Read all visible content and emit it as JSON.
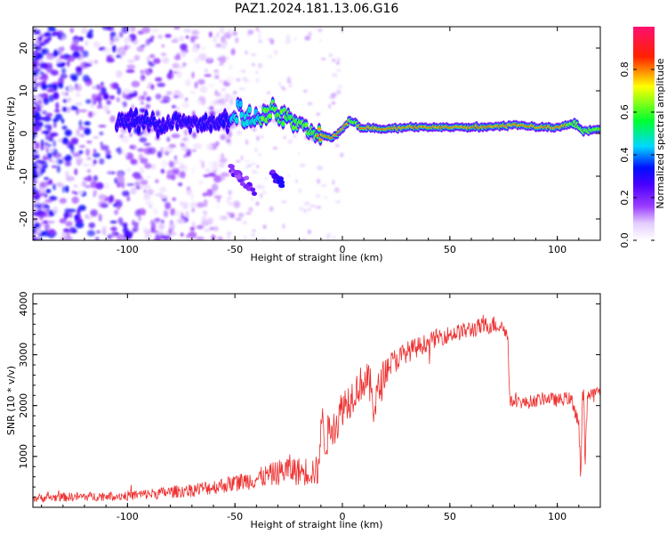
{
  "figure": {
    "title": "PAZ1.2024.181.13.06.G16"
  },
  "chart_data": [
    {
      "type": "heatmap",
      "xlabel": "Height of straight line (km)",
      "ylabel": "Frequency (Hz)",
      "xlim": [
        -144,
        120
      ],
      "ylim": [
        -25,
        25
      ],
      "xticks": [
        -100,
        -50,
        0,
        50,
        100
      ],
      "xtick_labels": [
        "-100",
        "-50",
        "0",
        "50",
        "100"
      ],
      "yticks": [
        -20,
        -10,
        0,
        10,
        20
      ],
      "ytick_labels": [
        "-20",
        "-10",
        "0",
        "10",
        "20"
      ],
      "colorbar": {
        "label": "Normalized spectral amplitude",
        "range": [
          0,
          1
        ],
        "ticks": [
          0.0,
          0.2,
          0.4,
          0.6,
          0.8
        ],
        "tick_labels": [
          "0.0",
          "0.2",
          "0.4",
          "0.6",
          "0.8"
        ],
        "stops": [
          {
            "v": 0.0,
            "color": "#ffffff"
          },
          {
            "v": 0.08,
            "color": "#e4ccff"
          },
          {
            "v": 0.16,
            "color": "#9a3cff"
          },
          {
            "v": 0.26,
            "color": "#4a00ff"
          },
          {
            "v": 0.34,
            "color": "#0010ff"
          },
          {
            "v": 0.44,
            "color": "#00d8ff"
          },
          {
            "v": 0.56,
            "color": "#00ff30"
          },
          {
            "v": 0.72,
            "color": "#ffff00"
          },
          {
            "v": 0.86,
            "color": "#ff2000"
          },
          {
            "v": 1.0,
            "color": "#ff1070"
          }
        ]
      },
      "ridge": {
        "x": [
          -100,
          -90,
          -80,
          -70,
          -60,
          -52,
          -48,
          -42,
          -38,
          -33,
          -28,
          -22,
          -18,
          -12,
          -8,
          -5,
          -2,
          0,
          3,
          6,
          9,
          12,
          20,
          30,
          40,
          50,
          60,
          70,
          80,
          90,
          100,
          108,
          112,
          116,
          120
        ],
        "freq": [
          3,
          2.5,
          3,
          2,
          2.5,
          3,
          6,
          3,
          4,
          5,
          4,
          3,
          1.5,
          0.5,
          -0.5,
          -1,
          0,
          1,
          3,
          2.5,
          1,
          1.5,
          1,
          1.5,
          1.5,
          1.5,
          1.5,
          1.5,
          2,
          1.5,
          1.5,
          2.5,
          0.5,
          0.8,
          1
        ],
        "amplitude": [
          0.3,
          0.35,
          0.32,
          0.3,
          0.34,
          0.4,
          0.5,
          0.45,
          0.55,
          0.6,
          0.55,
          0.6,
          0.7,
          0.75,
          0.75,
          0.8,
          0.8,
          0.75,
          0.75,
          0.7,
          0.8,
          0.85,
          0.85,
          0.75,
          0.78,
          0.75,
          0.78,
          0.8,
          0.85,
          0.82,
          0.82,
          0.7,
          0.55,
          0.7,
          0.7
        ]
      },
      "branches": [
        {
          "x": [
            -33,
            -28
          ],
          "freq": [
            -9,
            -12
          ],
          "amplitude": 0.3
        },
        {
          "x": [
            -52,
            -40
          ],
          "freq": [
            -8,
            -14
          ],
          "amplitude": 0.22
        }
      ]
    },
    {
      "type": "line",
      "xlabel": "Height of straight line (km)",
      "ylabel": "SNR (10 * v/v)",
      "xlim": [
        -144,
        120
      ],
      "ylim": [
        0,
        4200
      ],
      "xticks": [
        -100,
        -50,
        0,
        50,
        100
      ],
      "xtick_labels": [
        "-100",
        "-50",
        "0",
        "50",
        "100"
      ],
      "yticks": [
        1000,
        2000,
        3000,
        4000
      ],
      "ytick_labels": [
        "1000",
        "2000",
        "3000",
        "4000"
      ],
      "series": [
        {
          "color": "#ee3030",
          "x": [
            -144,
            -130,
            -120,
            -110,
            -100,
            -90,
            -80,
            -70,
            -60,
            -50,
            -40,
            -35,
            -30,
            -25,
            -20,
            -15,
            -11,
            -10,
            -8,
            -5,
            -2,
            0,
            3,
            6,
            9,
            12,
            15,
            20,
            25,
            30,
            35,
            40,
            45,
            50,
            55,
            60,
            65,
            70,
            75,
            77,
            78,
            80,
            85,
            90,
            95,
            100,
            105,
            108,
            110,
            111,
            112,
            113,
            114,
            116,
            120
          ],
          "y": [
            180,
            200,
            210,
            220,
            230,
            260,
            300,
            340,
            400,
            480,
            560,
            620,
            680,
            750,
            700,
            720,
            700,
            1800,
            1300,
            1600,
            1700,
            2000,
            2100,
            2300,
            2450,
            2500,
            2000,
            2700,
            2900,
            3050,
            3150,
            3250,
            3350,
            3400,
            3450,
            3500,
            3550,
            3600,
            3550,
            3300,
            2050,
            2100,
            2050,
            2100,
            2150,
            2100,
            2150,
            2000,
            1600,
            500,
            2500,
            800,
            2200,
            2250,
            2300
          ],
          "noise": [
            80,
            90,
            90,
            90,
            100,
            110,
            120,
            140,
            150,
            170,
            200,
            220,
            250,
            300,
            280,
            300,
            300,
            400,
            400,
            400,
            400,
            400,
            400,
            350,
            350,
            350,
            500,
            300,
            250,
            220,
            200,
            180,
            180,
            170,
            170,
            180,
            180,
            180,
            150,
            150,
            120,
            120,
            130,
            130,
            130,
            130,
            130,
            200,
            300,
            300,
            400,
            300,
            200,
            100,
            100
          ]
        }
      ]
    }
  ]
}
